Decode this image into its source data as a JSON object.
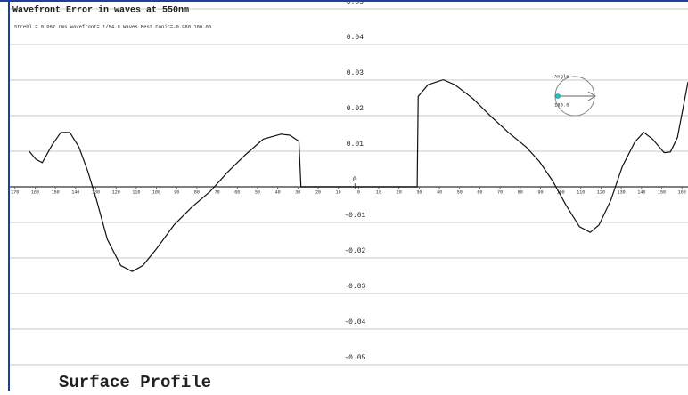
{
  "chart_data": {
    "type": "line",
    "title": "Wavefront Error in waves at 550nm",
    "subtitle": "Strehl = 0.987 rms wavefront= 1/54.9 Waves Best Conic=-0.988 180.00",
    "footer": "Surface Profile",
    "annotation": {
      "label": "Angle",
      "value_text": "180.0"
    },
    "color": "#111111",
    "grid": true,
    "xlim": [
      -173,
      163
    ],
    "ylim": [
      -0.055,
      0.05
    ],
    "yticks": [
      0.05,
      0.04,
      0.03,
      0.02,
      0.01,
      0,
      -0.01,
      -0.02,
      -0.03,
      -0.04,
      -0.05
    ],
    "xticks": [
      {
        "value": -170,
        "label": "170"
      },
      {
        "value": -160,
        "label": "160"
      },
      {
        "value": -150,
        "label": "150"
      },
      {
        "value": -140,
        "label": "140"
      },
      {
        "value": -130,
        "label": "130"
      },
      {
        "value": -120,
        "label": "120"
      },
      {
        "value": -110,
        "label": "110"
      },
      {
        "value": -100,
        "label": "100"
      },
      {
        "value": -90,
        "label": "90"
      },
      {
        "value": -80,
        "label": "80"
      },
      {
        "value": -70,
        "label": "70"
      },
      {
        "value": -60,
        "label": "60"
      },
      {
        "value": -50,
        "label": "50"
      },
      {
        "value": -40,
        "label": "40"
      },
      {
        "value": -30,
        "label": "30"
      },
      {
        "value": -20,
        "label": "20"
      },
      {
        "value": -10,
        "label": "10"
      },
      0,
      10,
      20,
      30,
      40,
      50,
      60,
      70,
      80,
      90,
      100,
      110,
      120,
      130,
      140,
      150,
      160
    ],
    "x": [
      -163.1,
      -159.6,
      -156.5,
      -151.7,
      -147.3,
      -142.9,
      -138.4,
      -134.0,
      -129.6,
      -124.3,
      -117.7,
      -112.0,
      -106.7,
      -100.1,
      -91.3,
      -82.5,
      -73.6,
      -64.8,
      -56.0,
      -47.2,
      -38.4,
      -34.0,
      -29.5,
      -28.5,
      29.0,
      29.5,
      34.4,
      41.9,
      47.6,
      56.4,
      65.3,
      74.1,
      82.9,
      89.5,
      96.1,
      102.7,
      109.3,
      114.6,
      119.0,
      124.8,
      130.5,
      136.7,
      141.1,
      145.5,
      151.2,
      154.3,
      157.8,
      163
    ],
    "values": [
      0.0101,
      0.0077,
      0.0068,
      0.0117,
      0.0153,
      0.0153,
      0.0112,
      0.0044,
      -0.0038,
      -0.0148,
      -0.0221,
      -0.0238,
      -0.0221,
      -0.0175,
      -0.0107,
      -0.0057,
      -0.0014,
      0.0041,
      0.009,
      0.0134,
      0.0148,
      0.0145,
      0.0128,
      0,
      0,
      0.0254,
      0.0287,
      0.0301,
      0.0287,
      0.0249,
      0.0199,
      0.0153,
      0.0112,
      0.0071,
      0.0016,
      -0.0052,
      -0.0112,
      -0.0128,
      -0.0107,
      -0.0038,
      0.0057,
      0.0126,
      0.0153,
      0.0134,
      0.0096,
      0.0098,
      0.0139,
      0.0295
    ]
  }
}
